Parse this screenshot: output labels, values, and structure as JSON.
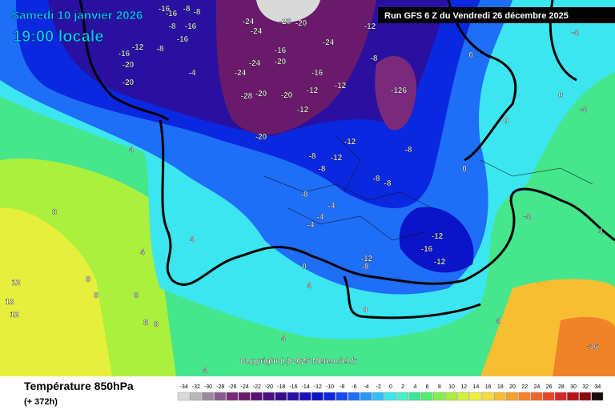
{
  "header": {
    "date": "Samedi 10 janvier 2026",
    "time": "19:00 locale",
    "run": "Run GFS 6 Z du Vendredi 26 décembre 2025"
  },
  "footer": {
    "title": "Température 850hPa",
    "lead": "(+ 372h)",
    "copyright": "Copyright (c) 2025 Meteociel.fr"
  },
  "map": {
    "isotherm_labels": [
      -16,
      -8,
      -16,
      -8,
      -16,
      -8,
      -16,
      -20,
      -16,
      -12,
      -8,
      -20,
      -4,
      -24,
      -24,
      -28,
      -20,
      -24,
      -16,
      -24,
      -20,
      -24,
      -16,
      -12,
      -20,
      -12,
      -28,
      -20,
      -12,
      -20,
      -12,
      -8,
      -126,
      -12,
      -8,
      -8,
      -12,
      -8,
      -8,
      -8,
      -8,
      -4,
      -4,
      -4,
      -12,
      -16,
      -12,
      -12,
      -8,
      0,
      0,
      4,
      4,
      4,
      8,
      8,
      12,
      12,
      12,
      8,
      8,
      8,
      8,
      4,
      4,
      4,
      0,
      0,
      -4,
      -4,
      0,
      0,
      4,
      -16,
      -4,
      4
    ]
  },
  "legend": {
    "ticks": [
      -34,
      -32,
      -30,
      -28,
      -26,
      -24,
      -22,
      -20,
      -18,
      -16,
      -14,
      -12,
      -10,
      -8,
      -6,
      -4,
      -2,
      0,
      2,
      4,
      6,
      8,
      10,
      12,
      14,
      16,
      18,
      20,
      22,
      24,
      26,
      28,
      30,
      32,
      34
    ],
    "colors": [
      "#d9d9d9",
      "#b8b8b8",
      "#9a8aa0",
      "#8a5a8e",
      "#7a2a7a",
      "#6a1a6a",
      "#5a1070",
      "#4a1080",
      "#3a0a90",
      "#2a10a0",
      "#1a10b8",
      "#0a14c8",
      "#0a28e0",
      "#1448f0",
      "#1e6ef8",
      "#2896f8",
      "#32bef8",
      "#3ce6f0",
      "#46f0c8",
      "#3ce696",
      "#50f06e",
      "#82f04a",
      "#aaf03c",
      "#d2f03c",
      "#f0f03c",
      "#f8dc3c",
      "#f8be32",
      "#f8a028",
      "#f88228",
      "#f06428",
      "#e84628",
      "#d22828",
      "#b41414",
      "#8a0a0a",
      "#1a0a0a"
    ]
  }
}
